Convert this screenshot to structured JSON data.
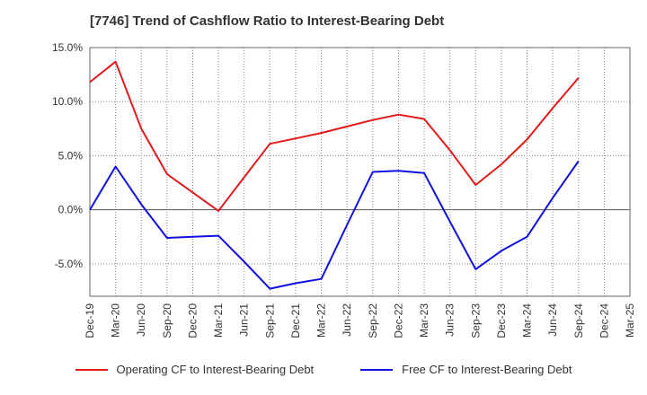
{
  "chart_data": {
    "type": "line",
    "title": "[7746]  Trend of Cashflow Ratio to Interest-Bearing Debt",
    "xlabel": "",
    "ylabel": "",
    "categories": [
      "Dec-19",
      "Mar-20",
      "Jun-20",
      "Sep-20",
      "Dec-20",
      "Mar-21",
      "Jun-21",
      "Sep-21",
      "Dec-21",
      "Mar-22",
      "Jun-22",
      "Sep-22",
      "Dec-22",
      "Mar-23",
      "Jun-23",
      "Sep-23",
      "Dec-23",
      "Mar-24",
      "Jun-24",
      "Sep-24",
      "Dec-24",
      "Mar-25"
    ],
    "ylim": [
      -8,
      15
    ],
    "yticks": [
      15.0,
      10.0,
      5.0,
      0.0,
      -5.0
    ],
    "ytick_labels": [
      "15.0%",
      "10.0%",
      "5.0%",
      "0.0%",
      "-5.0%"
    ],
    "grid": "vertical dotted",
    "legend_position": "bottom",
    "series": [
      {
        "name": "Operating CF to Interest-Bearing Debt",
        "color": "#e31a1c",
        "values": [
          11.8,
          13.7,
          7.5,
          3.3,
          1.6,
          -0.1,
          3.0,
          6.1,
          6.6,
          7.1,
          7.7,
          8.3,
          8.8,
          8.4,
          5.5,
          2.3,
          4.2,
          6.5,
          9.4,
          12.2,
          null,
          null
        ]
      },
      {
        "name": "Free CF to Interest-Bearing Debt",
        "color": "#1010e0",
        "values": [
          0.0,
          4.0,
          0.5,
          -2.6,
          -2.5,
          -2.4,
          -4.8,
          -7.3,
          -6.8,
          -6.4,
          -1.4,
          3.5,
          3.6,
          3.4,
          -1.1,
          -5.5,
          -3.8,
          -2.5,
          1.1,
          4.5,
          null,
          null
        ]
      }
    ]
  }
}
